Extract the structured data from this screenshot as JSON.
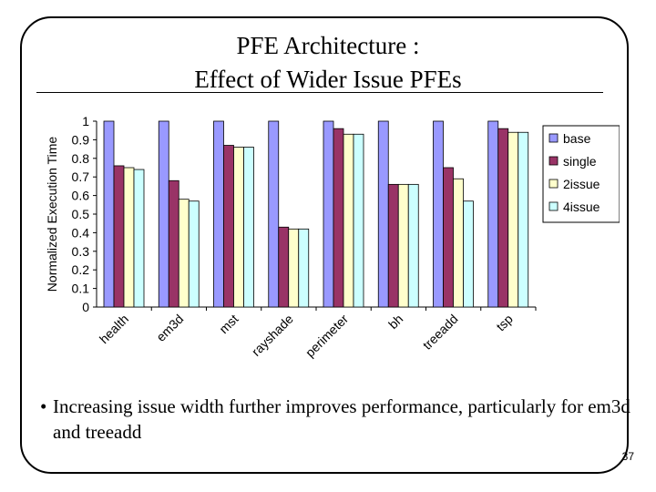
{
  "slide": {
    "title_line1": "PFE Architecture :",
    "title_line2": "Effect of Wider Issue PFEs",
    "bullet_symbol": "•",
    "bullet_text": "Increasing issue width further improves performance, particularly for em3d and treeadd",
    "page_number": "37"
  },
  "chart_data": {
    "type": "bar",
    "categories": [
      "health",
      "em3d",
      "mst",
      "rayshade",
      "perimeter",
      "bh",
      "treeadd",
      "tsp"
    ],
    "series": [
      {
        "name": "base",
        "color": "#9999ff",
        "values": [
          1.0,
          1.0,
          1.0,
          1.0,
          1.0,
          1.0,
          1.0,
          1.0
        ]
      },
      {
        "name": "single",
        "color": "#993366",
        "values": [
          0.76,
          0.68,
          0.87,
          0.43,
          0.96,
          0.66,
          0.75,
          0.96
        ]
      },
      {
        "name": "2issue",
        "color": "#ffffcc",
        "values": [
          0.75,
          0.58,
          0.86,
          0.42,
          0.93,
          0.66,
          0.69,
          0.94
        ]
      },
      {
        "name": "4issue",
        "color": "#ccffff",
        "values": [
          0.74,
          0.57,
          0.86,
          0.42,
          0.93,
          0.66,
          0.57,
          0.94
        ]
      }
    ],
    "ylabel": "Normalized Execution Time",
    "xlabel": "",
    "ylim": [
      0,
      1
    ],
    "yticks": [
      "0",
      "0.1",
      "0.2",
      "0.3",
      "0.4",
      "0.5",
      "0.6",
      "0.7",
      "0.8",
      "0.9",
      "1"
    ],
    "grid": false,
    "legend_position": "right"
  }
}
